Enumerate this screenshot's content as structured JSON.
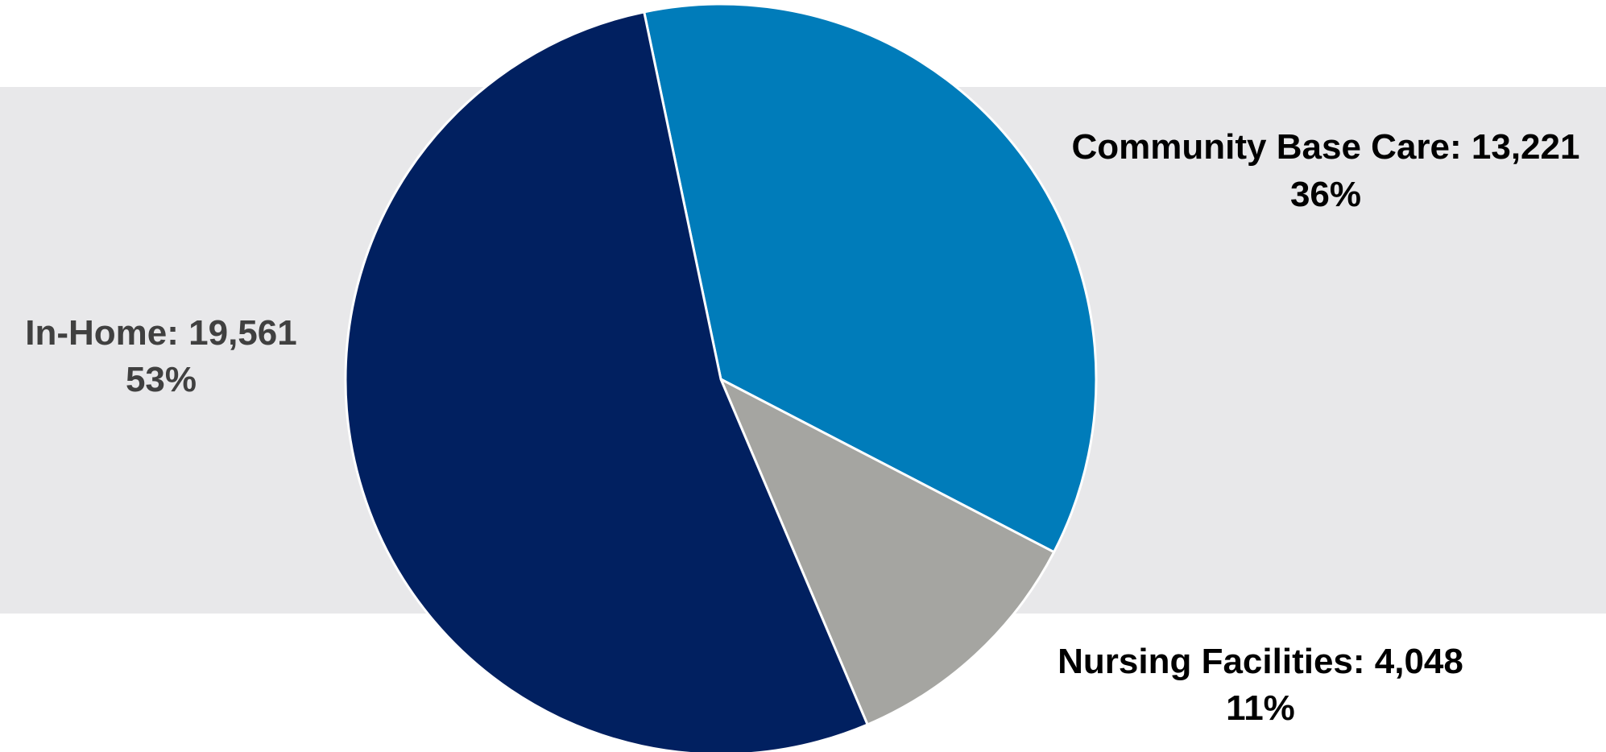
{
  "chart_data": {
    "type": "pie",
    "slices": [
      {
        "label": "In-Home",
        "value": 19561,
        "value_text": "19,561",
        "percent_text": "53%",
        "color": "#012060",
        "label_color": "#404040"
      },
      {
        "label": "Community Base Care",
        "value": 13221,
        "value_text": "13,221",
        "percent_text": "36%",
        "color": "#007cba",
        "label_color": "#000000"
      },
      {
        "label": "Nursing Facilities",
        "value": 4048,
        "value_text": "4,048",
        "percent_text": "11%",
        "color": "#a5a5a1",
        "label_color": "#000000"
      }
    ],
    "start_angle_deg": -11.8,
    "direction": "clockwise",
    "slice_order": [
      1,
      2,
      0
    ],
    "slice_border_color": "#ffffff",
    "background_band_color": "#e8e8ea"
  }
}
